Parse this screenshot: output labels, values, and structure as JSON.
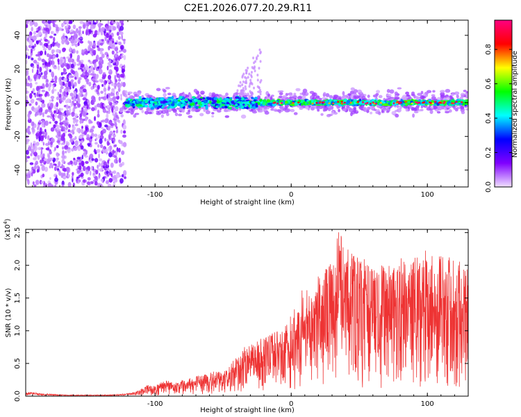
{
  "page_title": "C2E1.2026.077.20.29.R11",
  "chart_data": [
    {
      "type": "heatmap",
      "title": "C2E1.2026.077.20.29.R11",
      "xlabel": "Height of straight line (km)",
      "ylabel": "Frequency (Hz)",
      "xlim": [
        -195,
        130
      ],
      "ylim": [
        -50,
        49
      ],
      "x_ticks": [
        {
          "value": -100,
          "label": "-100"
        },
        {
          "value": 0,
          "label": "0"
        },
        {
          "value": 100,
          "label": "100"
        }
      ],
      "y_ticks": [
        {
          "value": 40,
          "label": "40"
        },
        {
          "value": 20,
          "label": "20"
        },
        {
          "value": 0,
          "label": "0"
        },
        {
          "value": -20,
          "label": "-20"
        },
        {
          "value": -40,
          "label": "-40"
        }
      ],
      "colorbar": {
        "label": "Normalized spectral amplitude",
        "range": [
          0.0,
          0.97
        ],
        "colormap": [
          "#f0e0ff",
          "#8000ff",
          "#0000ff",
          "#00ffff",
          "#00ff00",
          "#ffff00",
          "#ff0000",
          "#ff0080"
        ],
        "ticks": [
          {
            "value": 0.0,
            "label": "0.0"
          },
          {
            "value": 0.2,
            "label": "0.2"
          },
          {
            "value": 0.4,
            "label": "0.4"
          },
          {
            "value": 0.6,
            "label": "0.6"
          },
          {
            "value": 0.8,
            "label": "0.8"
          }
        ]
      },
      "features": [
        {
          "name": "broadband noise",
          "x_range": [
            -195,
            -122
          ],
          "freq_range": [
            -50,
            49
          ],
          "amplitude": 0.15
        },
        {
          "name": "signal band",
          "x_range": [
            -122,
            130
          ],
          "center_freq": 0,
          "half_width_hz": 4,
          "amplitude_range": [
            0.2,
            0.97
          ]
        },
        {
          "name": "drifting branch",
          "x_range": [
            -40,
            -22
          ],
          "freq_range": [
            5,
            30
          ],
          "amplitude": 0.1
        }
      ]
    },
    {
      "type": "line",
      "xlabel": "Height of straight line (km)",
      "ylabel": "SNR (10 * v/v)",
      "y_scale_label": "(x10",
      "y_scale_exponent": "4",
      "y_scale_suffix": ")",
      "xlim": [
        -195,
        130
      ],
      "ylim": [
        0,
        2.55
      ],
      "x_ticks": [
        {
          "value": -100,
          "label": "-100"
        },
        {
          "value": 0,
          "label": "0"
        },
        {
          "value": 100,
          "label": "100"
        }
      ],
      "y_ticks": [
        {
          "value": 0.0,
          "label": "0.0"
        },
        {
          "value": 0.5,
          "label": "0.5"
        },
        {
          "value": 1.0,
          "label": "1.0"
        },
        {
          "value": 1.5,
          "label": "1.5"
        },
        {
          "value": 2.0,
          "label": "2.0"
        },
        {
          "value": 2.5,
          "label": "2.5"
        }
      ],
      "series": [
        {
          "name": "SNR",
          "color": "#ee3333",
          "x": [
            -195,
            -190,
            -185,
            -175,
            -165,
            -150,
            -135,
            -125,
            -115,
            -110,
            -105,
            -100,
            -95,
            -90,
            -85,
            -80,
            -75,
            -70,
            -65,
            -60,
            -55,
            -50,
            -45,
            -40,
            -35,
            -30,
            -25,
            -20,
            -15,
            -10,
            -5,
            0,
            5,
            10,
            15,
            20,
            25,
            30,
            35,
            40,
            45,
            50,
            55,
            60,
            65,
            70,
            75,
            80,
            85,
            90,
            95,
            100,
            105,
            110,
            115,
            120,
            125,
            130
          ],
          "peak": [
            0.06,
            0.07,
            0.04,
            0.03,
            0.02,
            0.02,
            0.02,
            0.03,
            0.06,
            0.12,
            0.18,
            0.15,
            0.22,
            0.25,
            0.2,
            0.25,
            0.28,
            0.3,
            0.32,
            0.36,
            0.4,
            0.38,
            0.48,
            0.62,
            0.75,
            0.82,
            0.9,
            0.88,
            0.95,
            1.0,
            1.1,
            1.25,
            1.5,
            1.7,
            1.55,
            1.85,
            2.0,
            2.1,
            2.55,
            2.3,
            2.3,
            2.15,
            2.1,
            2.05,
            2.0,
            2.05,
            2.0,
            2.15,
            2.0,
            2.1,
            2.2,
            2.25,
            2.1,
            2.2,
            2.15,
            2.1,
            2.05,
            2.0
          ]
        }
      ]
    }
  ]
}
